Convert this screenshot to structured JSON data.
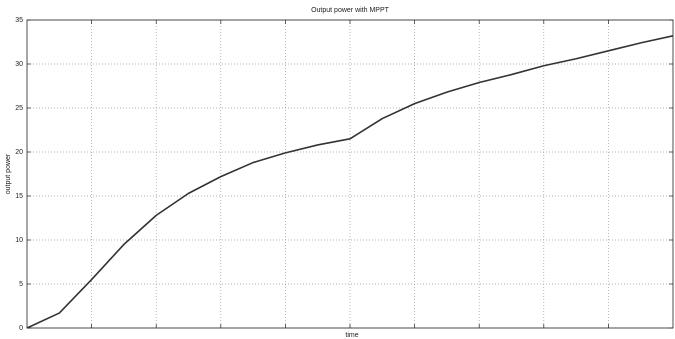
{
  "chart_data": {
    "type": "line",
    "title": "Output power with MPPT",
    "x_label": "time",
    "y_label": "output power",
    "categories": [
      null,
      null,
      null,
      null,
      null,
      null,
      null,
      null,
      null,
      null,
      null,
      null,
      null,
      null,
      null,
      null,
      null,
      null,
      null,
      null,
      null
    ],
    "series": [
      {
        "name": "output power",
        "color": "#333333",
        "values": [
          0,
          1.7,
          5.5,
          9.5,
          12.8,
          15.3,
          17.2,
          18.8,
          19.9,
          20.8,
          21.5,
          23.8,
          25.5,
          26.8,
          27.9,
          28.8,
          29.8,
          30.6,
          31.5,
          32.4,
          33.2
        ]
      }
    ],
    "ylim": [
      0,
      35
    ],
    "yticks": [
      0,
      5,
      10,
      15,
      20,
      25,
      30,
      35
    ],
    "grid": true
  }
}
